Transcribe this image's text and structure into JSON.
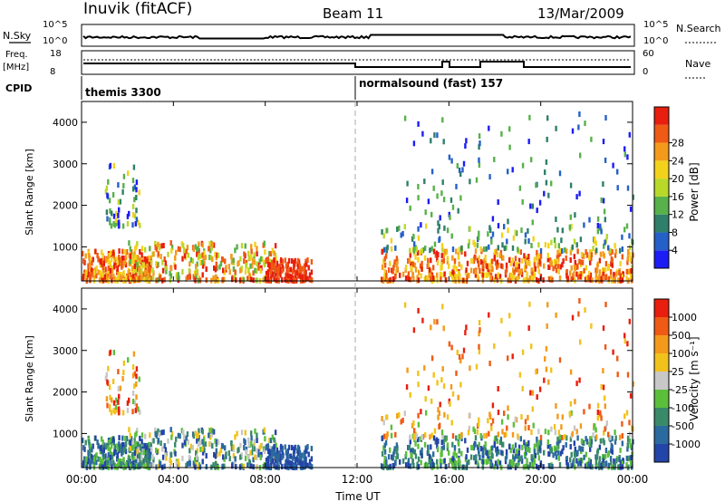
{
  "header": {
    "station": "Inuvik (fitACF)",
    "beam": "Beam 11",
    "date": "13/Mar/2009"
  },
  "top_panels": {
    "nsky_label": "N.Sky",
    "nsky_ticks": [
      "10^5",
      "10^0"
    ],
    "nsearch_label": "N.Search",
    "nsearch_ticks": [
      "10^5",
      "10^0"
    ],
    "freq_label": "Freq.",
    "freq_unit": "[MHz]",
    "freq_ticks": [
      "18",
      "8"
    ],
    "nave_label": "Nave",
    "nave_ticks": [
      "60",
      "0"
    ],
    "cpid_label": "CPID",
    "modes": [
      {
        "name": "themis 3300",
        "start_hour": 0
      },
      {
        "name": "normalsound (fast) 157",
        "start_hour": 12
      }
    ]
  },
  "chart_data": [
    {
      "type": "heatmap",
      "panel": "power",
      "ylabel": "Slant Range [km]",
      "y_ticks": [
        1000,
        2000,
        3000,
        4000
      ],
      "ylim": [
        180,
        4500
      ],
      "x_ticks": [
        "00:00",
        "04:00",
        "08:00",
        "12:00",
        "16:00",
        "20:00",
        "00:00"
      ],
      "xlim_hours": [
        0,
        24
      ],
      "colorbar": {
        "label": "Power [dB]",
        "ticks": [
          "4",
          "8",
          "12",
          "16",
          "20",
          "24",
          "28"
        ],
        "colors": [
          "#1c1cf5",
          "#2460c8",
          "#2f7f6a",
          "#58b14a",
          "#b8d82a",
          "#f3d21c",
          "#f39a1c",
          "#ef5a14",
          "#e81e0e"
        ]
      }
    },
    {
      "type": "heatmap",
      "panel": "velocity",
      "ylabel": "Slant Range [km]",
      "y_ticks": [
        1000,
        2000,
        3000,
        4000
      ],
      "ylim": [
        180,
        4500
      ],
      "x_ticks": [
        "00:00",
        "04:00",
        "08:00",
        "12:00",
        "16:00",
        "20:00",
        "00:00"
      ],
      "xlim_hours": [
        0,
        24
      ],
      "xlabel": "Time UT",
      "colorbar": {
        "label": "Velocity [m s⁻¹]",
        "ticks": [
          "1000",
          "500",
          "100",
          "25",
          "-25",
          "-100",
          "-500",
          "-1000"
        ],
        "colors": [
          "#2344a8",
          "#2b6a9e",
          "#3a8a6a",
          "#5cbf3c",
          "#c8c8c8",
          "#f2c21c",
          "#f39a1c",
          "#ef5a14",
          "#e81e0e"
        ]
      }
    }
  ]
}
